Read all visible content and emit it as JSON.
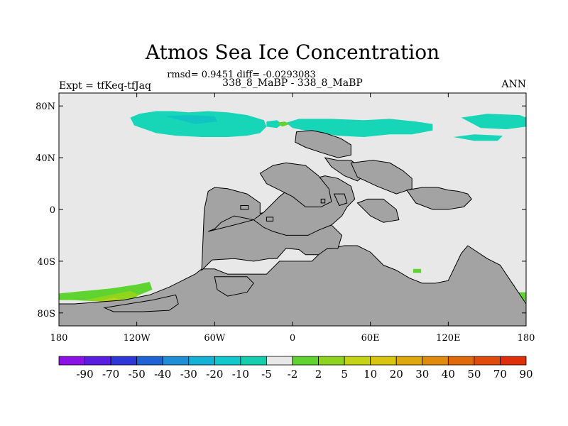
{
  "chart_data": {
    "type": "heatmap",
    "title": "Atmos Sea Ice Concentration",
    "stats_line": "rmsd= 0.9451 diff= -0.0293083",
    "subtitle": "338_8_MaBP - 338_8_MaBP",
    "left_label": "Expt = tfKeq-tfJaq",
    "right_label": "ANN",
    "x_range": [
      -180,
      180
    ],
    "y_range": [
      -90,
      90
    ],
    "x_ticks": [
      {
        "value": -180,
        "label": "180"
      },
      {
        "value": -120,
        "label": "120W"
      },
      {
        "value": -60,
        "label": "60W"
      },
      {
        "value": 0,
        "label": "0"
      },
      {
        "value": 60,
        "label": "60E"
      },
      {
        "value": 120,
        "label": "120E"
      },
      {
        "value": 180,
        "label": "180"
      }
    ],
    "y_ticks": [
      {
        "value": 80,
        "label": "80N"
      },
      {
        "value": 40,
        "label": "40N"
      },
      {
        "value": 0,
        "label": "0"
      },
      {
        "value": -40,
        "label": "40S"
      },
      {
        "value": -80,
        "label": "80S"
      }
    ],
    "colorbar": {
      "labels": [
        "-90",
        "-70",
        "-50",
        "-40",
        "-30",
        "-20",
        "-10",
        "-5",
        "-2",
        "2",
        "5",
        "10",
        "20",
        "30",
        "40",
        "50",
        "70",
        "90"
      ],
      "colors": [
        "#8a12e6",
        "#5a1ee0",
        "#2f37d8",
        "#1f63d6",
        "#1e8fd6",
        "#16b1d6",
        "#10c9cc",
        "#14cfae",
        "#e8e8e8",
        "#5fd430",
        "#8ed41e",
        "#c4d414",
        "#d9c40e",
        "#dfa80c",
        "#e08c0a",
        "#e06a0a",
        "#e04a0a",
        "#e02e0a"
      ]
    },
    "background_color": "#e8e8e8",
    "land_color": "#a3a3a3",
    "regions": [
      {
        "category": "-10 to -5",
        "color": "#17d6b8",
        "lon": [
          -125,
          -118,
          -105,
          -92,
          -80,
          -65,
          -50,
          -35,
          -22,
          -20,
          -25,
          -35,
          -50,
          -70,
          -90,
          -105,
          -122,
          -125
        ],
        "lat": [
          71,
          74,
          76,
          76,
          75,
          76,
          75,
          73,
          69,
          64,
          59,
          57,
          56,
          56,
          57,
          59,
          65,
          71
        ]
      },
      {
        "category": "-10 to -5",
        "color": "#17d6b8",
        "lon": [
          -20,
          -12,
          -8,
          -12,
          -20
        ],
        "lat": [
          68,
          69,
          66,
          63,
          64
        ]
      },
      {
        "category": "-10 to -5",
        "color": "#17d6b8",
        "lon": [
          -5,
          5,
          30,
          55,
          75,
          95,
          108,
          108,
          92,
          75,
          55,
          35,
          15,
          0,
          -5
        ],
        "lat": [
          67,
          70,
          70,
          69,
          70,
          68,
          66,
          61,
          58,
          58,
          56,
          57,
          60,
          63,
          67
        ]
      },
      {
        "category": "-10 to -5",
        "color": "#17d6b8",
        "lon": [
          130,
          150,
          175,
          180,
          180,
          165,
          145,
          130
        ],
        "lat": [
          71,
          74,
          73,
          71,
          64,
          62,
          63,
          71
        ]
      },
      {
        "category": "-10 to -5",
        "color": "#17d6b8",
        "lon": [
          124,
          140,
          162,
          158,
          140,
          124
        ],
        "lat": [
          56,
          58,
          57,
          53,
          53,
          56
        ]
      },
      {
        "category": "-20 to -10",
        "color": "#10c4c4",
        "lon": [
          -98,
          -80,
          -60,
          -58,
          -75,
          -98
        ],
        "lat": [
          72,
          73,
          72,
          68,
          66,
          72
        ]
      },
      {
        "category": "-10 to -5",
        "color": "#17d6b8",
        "lon": [
          -57,
          -45,
          -40,
          -44,
          -56,
          -57
        ],
        "lat": [
          -56,
          -56,
          -61,
          -65,
          -64,
          -56
        ]
      },
      {
        "category": "2 to 5",
        "color": "#5fd430",
        "lon": [
          -12,
          -6,
          -2,
          -8,
          -12
        ],
        "lat": [
          67,
          68,
          66,
          64,
          67
        ]
      },
      {
        "category": "2 to 5",
        "color": "#5fd430",
        "lon": [
          93,
          99,
          99,
          93
        ],
        "lat": [
          -46,
          -46,
          -49,
          -49
        ]
      },
      {
        "category": "2 to 5",
        "color": "#5fd430",
        "lon": [
          -180,
          -160,
          -140,
          -120,
          -110,
          -108,
          -118,
          -130,
          -150,
          -170,
          -180
        ],
        "lat": [
          -65,
          -63,
          -61,
          -58,
          -56,
          -62,
          -66,
          -70,
          -71,
          -70,
          -70
        ]
      },
      {
        "category": "5 to 10",
        "color": "#90d41e",
        "lon": [
          -160,
          -140,
          -125,
          -118,
          -126,
          -140,
          -160
        ],
        "lat": [
          -70,
          -66,
          -63,
          -66,
          -71,
          -72,
          -70
        ]
      },
      {
        "category": "10 to 20",
        "color": "#b9d418",
        "lon": [
          -150,
          -138,
          -130,
          -136,
          -150
        ],
        "lat": [
          -72,
          -68,
          -70,
          -73,
          -72
        ]
      },
      {
        "category": "2 to 5",
        "color": "#5fd430",
        "lon": [
          174,
          180,
          180,
          176,
          174
        ],
        "lat": [
          -64,
          -64,
          -71,
          -70,
          -64
        ]
      },
      {
        "category": "2 to 5",
        "color": "#5fd430",
        "lon": [
          168,
          171,
          171,
          168
        ],
        "lat": [
          -58,
          -58,
          -62,
          -62
        ]
      }
    ],
    "land": [
      {
        "lon": [
          -180,
          -168,
          -130,
          -110,
          -95,
          -85,
          -75,
          -70,
          -60,
          -50,
          -20,
          -10,
          15,
          20,
          25,
          30,
          40,
          50,
          60,
          70,
          80,
          90,
          100,
          110,
          120,
          130,
          135,
          150,
          160,
          170,
          180,
          180,
          -180
        ],
        "lat": [
          -73,
          -73,
          -70,
          -66,
          -60,
          -55,
          -50,
          -46,
          -46,
          -50,
          -50,
          -40,
          -40,
          -35,
          -30,
          -30,
          -28,
          -28,
          -33,
          -43,
          -47,
          -53,
          -57,
          -57,
          -55,
          -34,
          -28,
          -38,
          -43,
          -58,
          -73,
          -90,
          -90
        ]
      },
      {
        "lon": [
          -145,
          -108,
          -90,
          -88,
          -95,
          -115,
          -138,
          -145
        ],
        "lat": [
          -76,
          -70,
          -66,
          -73,
          -78,
          -79,
          -79,
          -76
        ]
      },
      {
        "lon": [
          -60,
          -35,
          -30,
          -35,
          -50,
          -58,
          -60
        ],
        "lat": [
          -52,
          -52,
          -57,
          -64,
          -67,
          -62,
          -52
        ]
      },
      {
        "lon": [
          -70,
          -62,
          -45,
          -30,
          -18,
          -12,
          -5,
          5,
          10,
          20,
          27,
          35,
          38,
          30,
          20,
          10,
          -10,
          -25,
          -25,
          -35,
          -50,
          -60,
          -65,
          -68,
          -70
        ],
        "lat": [
          -47,
          -39,
          -38,
          -40,
          -38,
          -38,
          -30,
          -31,
          -35,
          -35,
          -30,
          -30,
          -20,
          -12,
          -8,
          -3,
          0,
          -3,
          5,
          12,
          16,
          17,
          14,
          0,
          -47
        ]
      },
      {
        "lon": [
          -65,
          -45,
          -30,
          -22,
          -10,
          0,
          10,
          25,
          35,
          45,
          48,
          42,
          38,
          30,
          20,
          12,
          5,
          -5,
          -15,
          -22,
          -30,
          -45,
          -55,
          -60,
          -65
        ],
        "lat": [
          -17,
          -12,
          -8,
          -2,
          10,
          18,
          22,
          26,
          24,
          18,
          8,
          2,
          -5,
          -12,
          -16,
          -20,
          -20,
          -20,
          -17,
          -14,
          -8,
          -5,
          -10,
          -15,
          -17
        ]
      },
      {
        "lon": [
          -25,
          -15,
          -5,
          10,
          20,
          28,
          30,
          22,
          10,
          0,
          -10,
          -20,
          -25
        ],
        "lat": [
          28,
          34,
          36,
          34,
          26,
          16,
          6,
          2,
          2,
          10,
          15,
          20,
          28
        ]
      },
      {
        "lon": [
          3,
          15,
          25,
          37,
          45,
          45,
          35,
          22,
          10,
          2,
          3
        ],
        "lat": [
          60,
          61,
          59,
          55,
          50,
          42,
          40,
          44,
          48,
          52,
          60
        ]
      },
      {
        "lon": [
          25,
          35,
          45,
          52,
          55,
          50,
          40,
          30,
          25
        ],
        "lat": [
          40,
          38,
          38,
          33,
          26,
          22,
          26,
          33,
          40
        ]
      },
      {
        "lon": [
          45,
          62,
          75,
          85,
          92,
          92,
          80,
          65,
          50,
          45
        ],
        "lat": [
          36,
          38,
          36,
          30,
          24,
          16,
          12,
          18,
          25,
          36
        ]
      },
      {
        "lon": [
          50,
          58,
          70,
          80,
          82,
          70,
          60,
          50
        ],
        "lat": [
          5,
          8,
          8,
          0,
          -8,
          -10,
          -5,
          5
        ]
      },
      {
        "lon": [
          88,
          100,
          112,
          120,
          128,
          135,
          138,
          132,
          120,
          108,
          95,
          88
        ],
        "lat": [
          15,
          17,
          17,
          15,
          14,
          12,
          8,
          2,
          0,
          0,
          5,
          15
        ]
      },
      {
        "lon": [
          32,
          40,
          42,
          36,
          32
        ],
        "lat": [
          12,
          12,
          5,
          3,
          12
        ]
      },
      {
        "lon": [
          22,
          25,
          25,
          22
        ],
        "lat": [
          8,
          8,
          5,
          5
        ]
      },
      {
        "lon": [
          -40,
          -34,
          -34,
          -40
        ],
        "lat": [
          3,
          3,
          0,
          0
        ]
      },
      {
        "lon": [
          -20,
          -15,
          -15,
          -20
        ],
        "lat": [
          -6,
          -6,
          -9,
          -9
        ]
      }
    ]
  }
}
